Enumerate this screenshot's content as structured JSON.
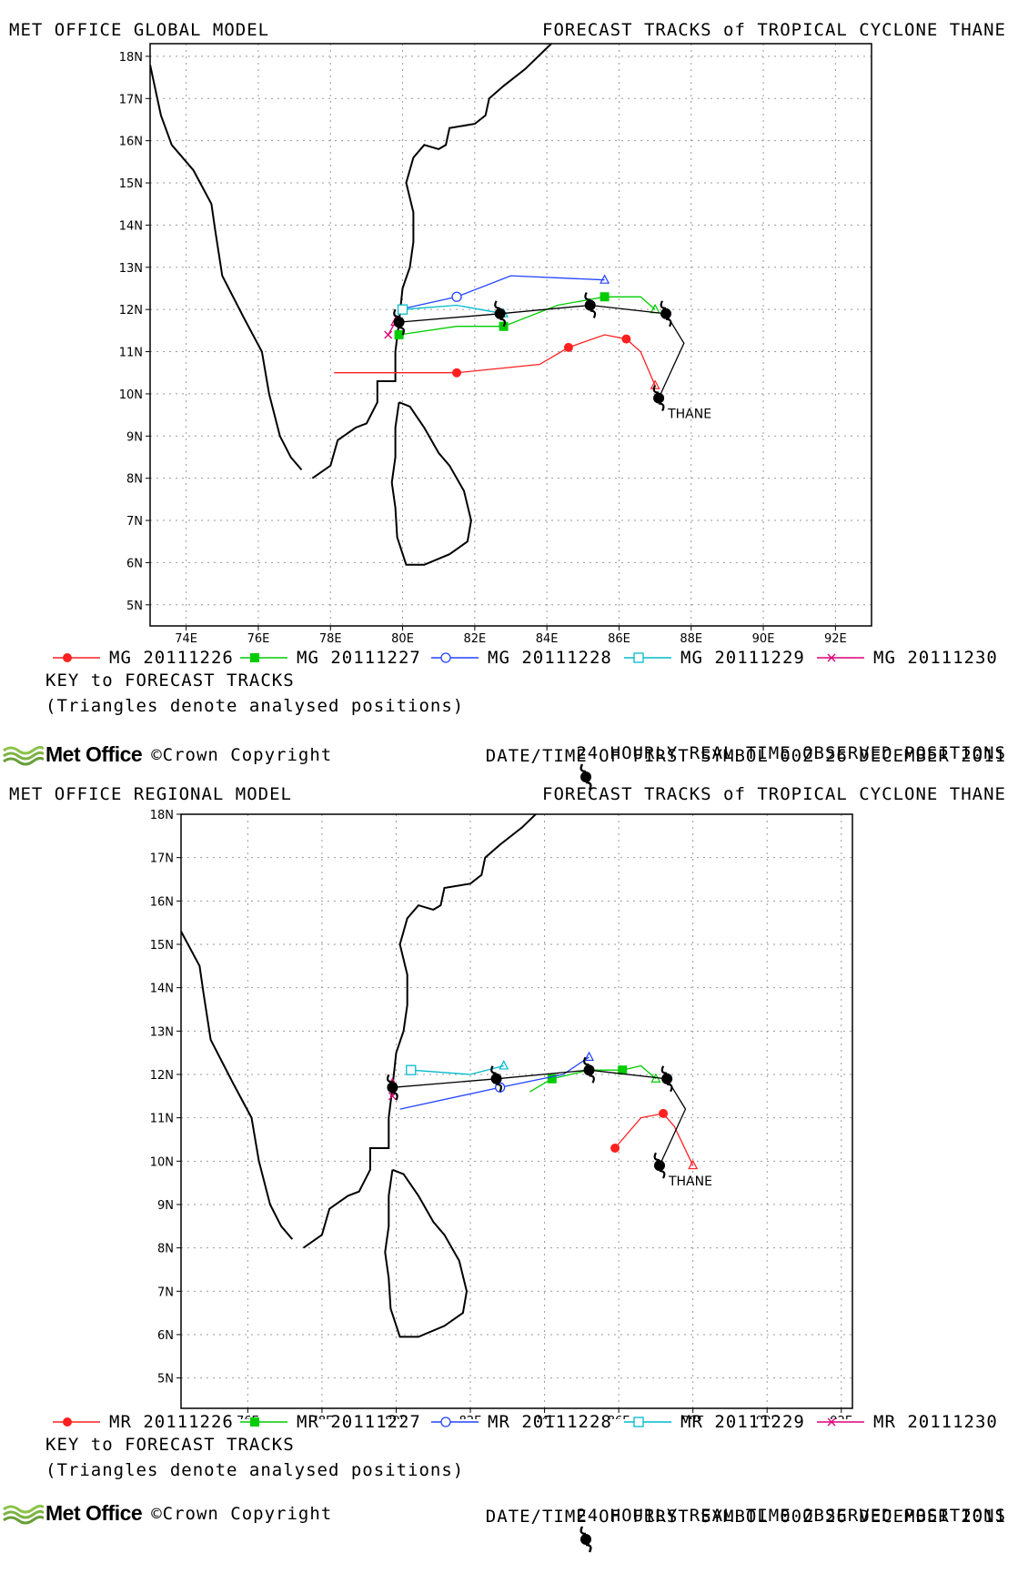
{
  "common": {
    "track_title": "FORECAST TRACKS of TROPICAL CYCLONE THANE",
    "key_title": "KEY to FORECAST TRACKS",
    "triangles_note": "(Triangles denote analysed positions)",
    "observed_label": "24 HOURLY REAL TIME OBSERVED POSITIONS",
    "first_symbol_label": "DATE/TIME OF FIRST SYMBOL 00Z 26 DECEMBER 2011",
    "brand": "Met Office",
    "copyright": "©Crown Copyright",
    "storm_label": "THANE",
    "lon_ticks": [
      74,
      76,
      78,
      80,
      82,
      84,
      86,
      88,
      90,
      92
    ],
    "lon_tick_labels": [
      "74E",
      "76E",
      "78E",
      "80E",
      "82E",
      "84E",
      "86E",
      "88E",
      "90E",
      "92E"
    ],
    "lat_ticks": [
      5,
      6,
      7,
      8,
      9,
      10,
      11,
      12,
      13,
      14,
      15,
      16,
      17,
      18
    ],
    "lat_tick_labels": [
      "5N",
      "6N",
      "7N",
      "8N",
      "9N",
      "10N",
      "11N",
      "12N",
      "13N",
      "14N",
      "15N",
      "16N",
      "17N",
      "18N"
    ],
    "colors": {
      "run1": "#ff2020",
      "run2": "#00cc00",
      "run3": "#2244ff",
      "run4": "#00bbcc",
      "run5": "#dd0077",
      "observed": "#000000",
      "coast": "#000000",
      "grid": "#999999"
    },
    "observed_track": [
      [
        87.1,
        9.9
      ],
      [
        87.8,
        11.2
      ],
      [
        87.3,
        11.9
      ],
      [
        85.2,
        12.1
      ],
      [
        82.7,
        11.9
      ],
      [
        79.9,
        11.7
      ]
    ]
  },
  "panels": [
    {
      "model_title": "MET OFFICE GLOBAL MODEL",
      "lon_range": [
        73,
        93
      ],
      "lat_range": [
        4.5,
        18.3
      ],
      "key": [
        {
          "label": "MG 20111226",
          "color": "run1",
          "marker": "circle-filled"
        },
        {
          "label": "MG 20111227",
          "color": "run2",
          "marker": "square-filled"
        },
        {
          "label": "MG 20111228",
          "color": "run3",
          "marker": "circle-open"
        },
        {
          "label": "MG 20111229",
          "color": "run4",
          "marker": "square-open"
        },
        {
          "label": "MG 20111230",
          "color": "run5",
          "marker": "cross"
        }
      ],
      "tracks": [
        {
          "color": "run1",
          "marker": "circle-filled",
          "points": [
            [
              87.0,
              10.2
            ],
            [
              86.6,
              11.0
            ],
            [
              86.2,
              11.3
            ],
            [
              85.6,
              11.4
            ],
            [
              84.6,
              11.1
            ],
            [
              83.8,
              10.7
            ],
            [
              81.5,
              10.5
            ],
            [
              78.1,
              10.5
            ]
          ]
        },
        {
          "color": "run2",
          "marker": "square-filled",
          "points": [
            [
              87.0,
              12.0
            ],
            [
              86.6,
              12.3
            ],
            [
              85.6,
              12.3
            ],
            [
              84.3,
              12.1
            ],
            [
              82.8,
              11.6
            ],
            [
              81.5,
              11.6
            ],
            [
              79.9,
              11.4
            ]
          ]
        },
        {
          "color": "run3",
          "marker": "circle-open",
          "points": [
            [
              85.6,
              12.7
            ],
            [
              83.0,
              12.8
            ],
            [
              81.5,
              12.3
            ],
            [
              79.9,
              12.0
            ]
          ]
        },
        {
          "color": "run4",
          "marker": "square-open",
          "points": [
            [
              82.8,
              11.9
            ],
            [
              81.5,
              12.1
            ],
            [
              80.0,
              12.0
            ]
          ]
        },
        {
          "color": "run5",
          "marker": "cross",
          "points": [
            [
              79.8,
              11.7
            ],
            [
              79.6,
              11.4
            ]
          ]
        }
      ]
    },
    {
      "model_title": "MET OFFICE REGIONAL MODEL",
      "lon_range": [
        74.2,
        92.3
      ],
      "lat_range": [
        4.3,
        18.0
      ],
      "key": [
        {
          "label": "MR 20111226",
          "color": "run1",
          "marker": "circle-filled"
        },
        {
          "label": "MR 20111227",
          "color": "run2",
          "marker": "square-filled"
        },
        {
          "label": "MR 20111228",
          "color": "run3",
          "marker": "circle-open"
        },
        {
          "label": "MR 20111229",
          "color": "run4",
          "marker": "square-open"
        },
        {
          "label": "MR 20111230",
          "color": "run5",
          "marker": "cross"
        }
      ],
      "tracks": [
        {
          "color": "run1",
          "marker": "circle-filled",
          "points": [
            [
              88.0,
              9.9
            ],
            [
              87.5,
              10.8
            ],
            [
              87.2,
              11.1
            ],
            [
              86.6,
              11.0
            ],
            [
              85.9,
              10.3
            ]
          ]
        },
        {
          "color": "run2",
          "marker": "square-filled",
          "points": [
            [
              87.0,
              11.9
            ],
            [
              86.6,
              12.2
            ],
            [
              86.1,
              12.1
            ],
            [
              85.2,
              12.1
            ],
            [
              84.2,
              11.9
            ],
            [
              83.6,
              11.6
            ]
          ]
        },
        {
          "color": "run3",
          "marker": "circle-open",
          "points": [
            [
              85.2,
              12.4
            ],
            [
              84.5,
              12.0
            ],
            [
              82.8,
              11.7
            ],
            [
              80.1,
              11.2
            ]
          ]
        },
        {
          "color": "run4",
          "marker": "square-open",
          "points": [
            [
              82.9,
              12.2
            ],
            [
              82.0,
              12.0
            ],
            [
              80.4,
              12.1
            ]
          ]
        },
        {
          "color": "run5",
          "marker": "cross",
          "points": [
            [
              79.9,
              11.8
            ],
            [
              79.9,
              11.5
            ]
          ]
        }
      ]
    }
  ]
}
